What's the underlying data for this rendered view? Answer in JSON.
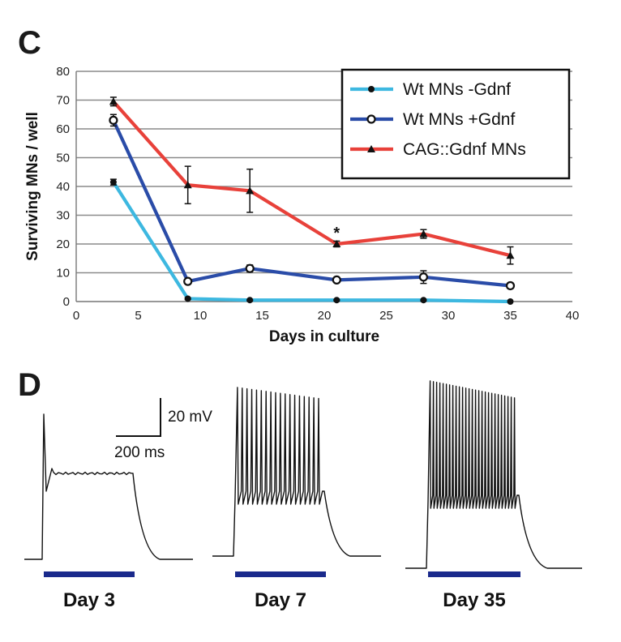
{
  "panels": {
    "c_letter": "C",
    "d_letter": "D"
  },
  "chart_data": {
    "type": "line",
    "title": "",
    "xlabel": "Days in culture",
    "ylabel": "Surviving MNs / well",
    "xlim": [
      0,
      40
    ],
    "ylim": [
      0,
      80
    ],
    "x_ticks": [
      "0",
      "5",
      "10",
      "15",
      "20",
      "25",
      "30",
      "35",
      "40"
    ],
    "y_ticks": [
      "0",
      "10",
      "20",
      "30",
      "40",
      "50",
      "60",
      "70",
      "80"
    ],
    "grid": "horizontal",
    "legend_position": "top-right",
    "series": [
      {
        "name": "Wt MNs -Gdnf",
        "color": "#3db8e0",
        "marker": "filled-circle",
        "x": [
          3,
          9,
          14,
          21,
          28,
          35
        ],
        "y": [
          41.5,
          1,
          0.5,
          0.5,
          0.5,
          0
        ],
        "err": [
          1,
          0.3,
          0.2,
          0.2,
          0.2,
          0
        ]
      },
      {
        "name": "Wt MNs +Gdnf",
        "color": "#2a4ca8",
        "marker": "open-circle",
        "x": [
          3,
          9,
          14,
          21,
          28,
          35
        ],
        "y": [
          63,
          7,
          11.5,
          7.5,
          8.5,
          5.5
        ],
        "err": [
          2,
          0.8,
          1.2,
          0.8,
          2.2,
          1
        ]
      },
      {
        "name": "CAG::Gdnf MNs",
        "color": "#e8413a",
        "marker": "filled-triangle",
        "x": [
          3,
          9,
          14,
          21,
          28,
          35
        ],
        "y": [
          69.5,
          40.5,
          38.5,
          20,
          23.5,
          16
        ],
        "err": [
          1.5,
          6.5,
          7.5,
          1,
          1.5,
          3
        ]
      }
    ],
    "annotations": [
      {
        "text": "*",
        "x": 21,
        "y": 20
      }
    ]
  },
  "traces": {
    "scale_bar": {
      "voltage_label": "20 mV",
      "time_label": "200 ms"
    },
    "days": [
      {
        "label": "Day 3",
        "spikes": 1
      },
      {
        "label": "Day 7",
        "spikes": 18
      },
      {
        "label": "Day 35",
        "spikes": 27
      }
    ],
    "stim_bar_color": "#1a2a8c",
    "trace_color": "#111111"
  }
}
